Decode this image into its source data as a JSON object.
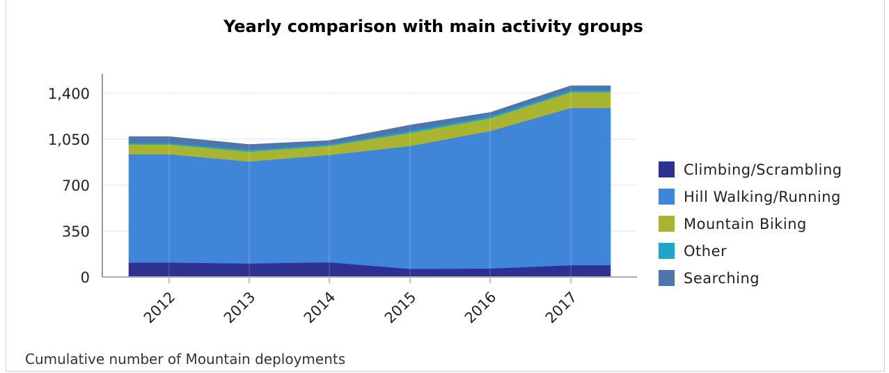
{
  "chart_data": {
    "type": "area",
    "stacked": true,
    "title": "Yearly comparison with main activity groups",
    "caption": "Cumulative number of Mountain deployments",
    "categories": [
      "2012",
      "2013",
      "2014",
      "2015",
      "2016",
      "2017"
    ],
    "ylim": [
      0,
      1400
    ],
    "yticks": [
      0,
      350,
      700,
      1050,
      1400
    ],
    "ytick_labels": [
      "0",
      "350",
      "700",
      "1,050",
      "1,400"
    ],
    "legend_position": "right",
    "grid": true,
    "series": [
      {
        "name": "Climbing/Scrambling",
        "color": "#2e3192",
        "values": [
          110,
          103,
          112,
          62,
          65,
          90
        ]
      },
      {
        "name": "Hill Walking/Running",
        "color": "#3f86d9",
        "values": [
          825,
          777,
          818,
          936,
          1047,
          1198
        ]
      },
      {
        "name": "Mountain Biking",
        "color": "#a9b531",
        "values": [
          75,
          75,
          70,
          100,
          97,
          120
        ]
      },
      {
        "name": "Other",
        "color": "#1ca6c7",
        "values": [
          10,
          15,
          10,
          15,
          15,
          15
        ]
      },
      {
        "name": "Searching",
        "color": "#4e76ad",
        "values": [
          50,
          40,
          30,
          45,
          30,
          35
        ]
      }
    ]
  }
}
